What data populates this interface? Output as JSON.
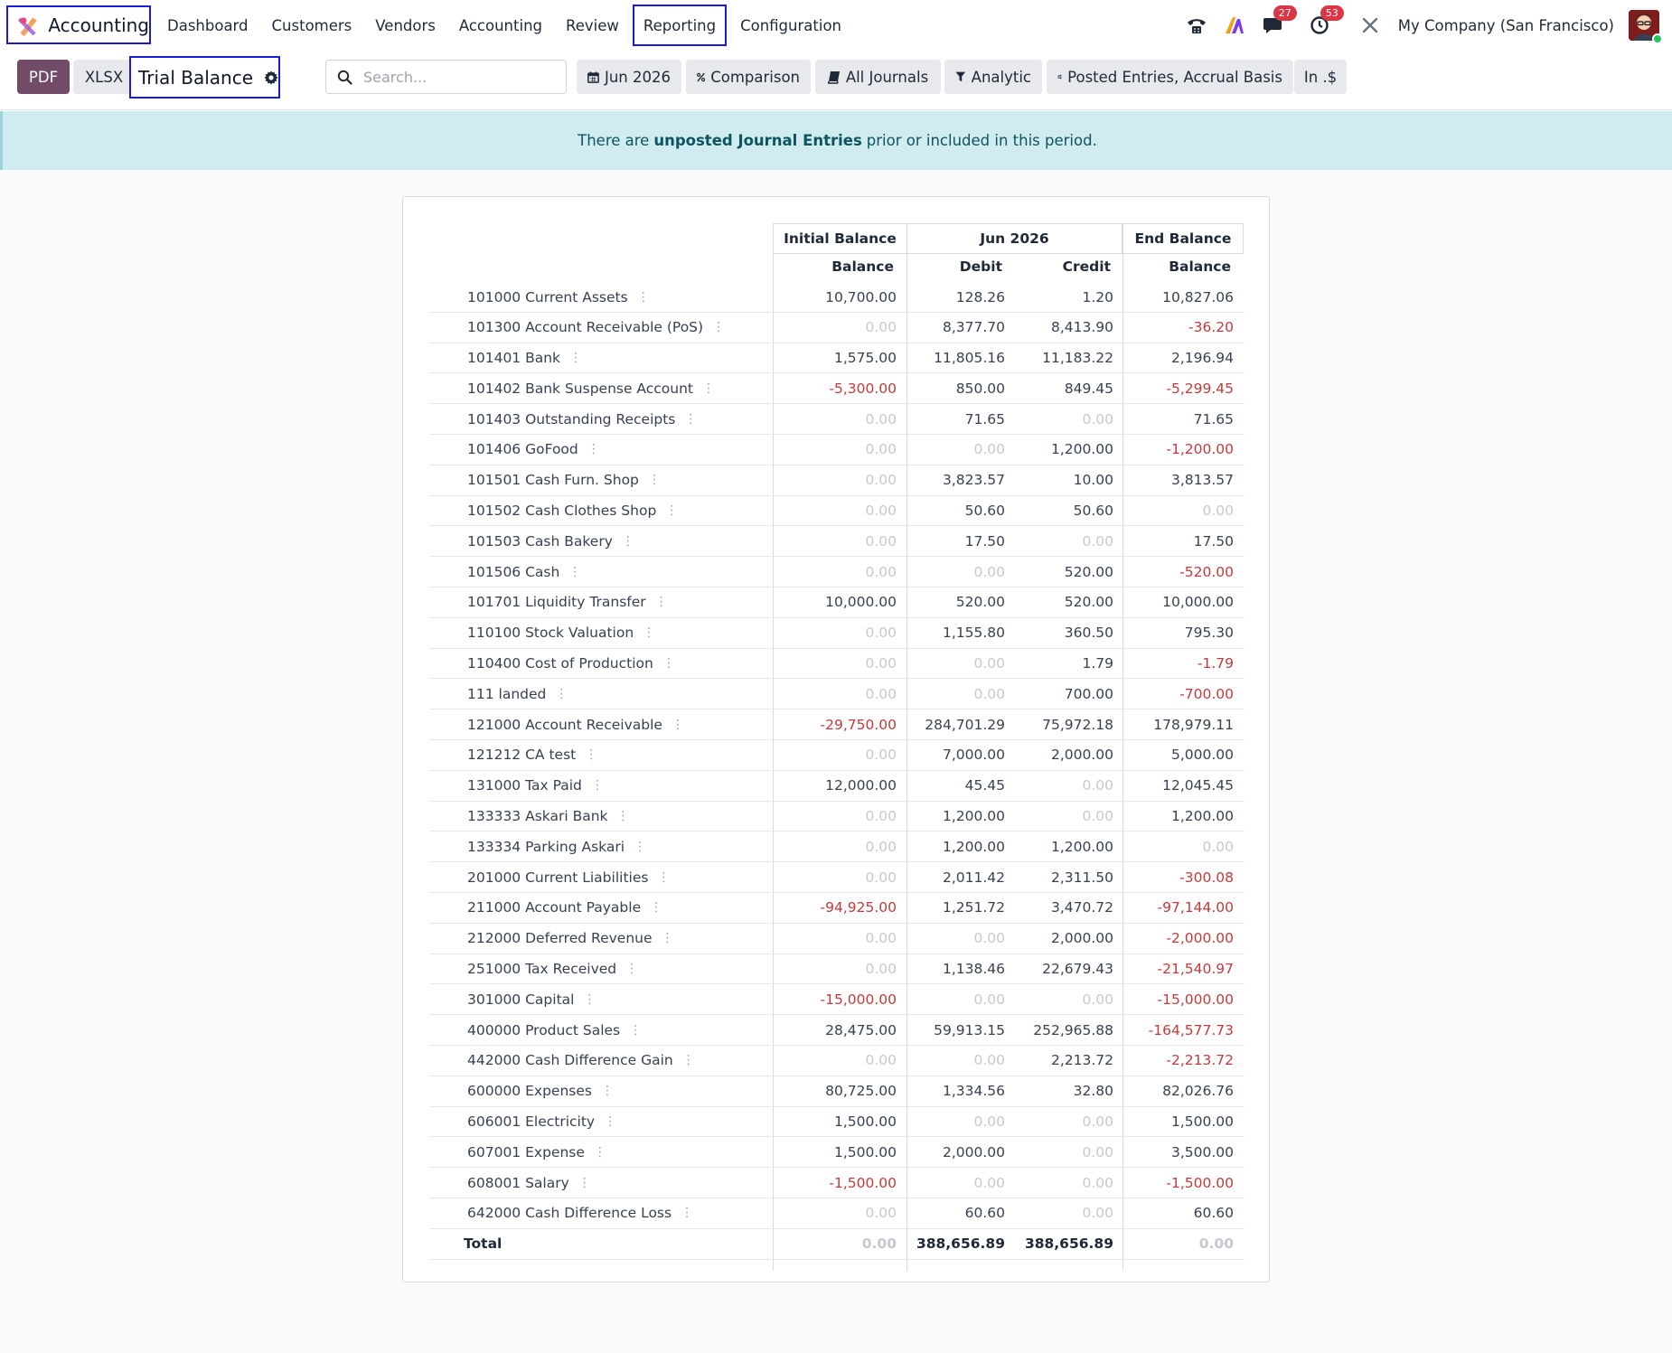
{
  "nav": {
    "app_name": "Accounting",
    "menu": [
      "Dashboard",
      "Customers",
      "Vendors",
      "Accounting",
      "Review",
      "Reporting",
      "Configuration"
    ],
    "messages_badge": "27",
    "activities_badge": "53",
    "company": "My Company (San Francisco)"
  },
  "controls": {
    "pdf_label": "PDF",
    "xlsx_label": "XLSX",
    "report_title": "Trial Balance",
    "search_placeholder": "Search...",
    "filters": [
      "Jun 2026",
      "Comparison",
      "All Journals",
      "Analytic",
      "Posted Entries, Accrual Basis",
      "In .$"
    ]
  },
  "alert": {
    "prefix": "There are",
    "link": "unposted Journal Entries",
    "suffix": "prior or included in this period."
  },
  "report": {
    "group_headers": [
      "Initial Balance",
      "Jun 2026",
      "End Balance"
    ],
    "sub_headers": [
      "Balance",
      "Debit",
      "Credit",
      "Balance"
    ],
    "rows": [
      [
        "101000 Current Assets",
        "10,700.00",
        "128.26",
        "1.20",
        "10,827.06"
      ],
      [
        "101300 Account Receivable (PoS)",
        "0.00",
        "8,377.70",
        "8,413.90",
        "-36.20"
      ],
      [
        "101401 Bank",
        "1,575.00",
        "11,805.16",
        "11,183.22",
        "2,196.94"
      ],
      [
        "101402 Bank Suspense Account",
        "-5,300.00",
        "850.00",
        "849.45",
        "-5,299.45"
      ],
      [
        "101403 Outstanding Receipts",
        "0.00",
        "71.65",
        "0.00",
        "71.65"
      ],
      [
        "101406 GoFood",
        "0.00",
        "0.00",
        "1,200.00",
        "-1,200.00"
      ],
      [
        "101501 Cash Furn. Shop",
        "0.00",
        "3,823.57",
        "10.00",
        "3,813.57"
      ],
      [
        "101502 Cash Clothes Shop",
        "0.00",
        "50.60",
        "50.60",
        "0.00"
      ],
      [
        "101503 Cash Bakery",
        "0.00",
        "17.50",
        "0.00",
        "17.50"
      ],
      [
        "101506 Cash",
        "0.00",
        "0.00",
        "520.00",
        "-520.00"
      ],
      [
        "101701 Liquidity Transfer",
        "10,000.00",
        "520.00",
        "520.00",
        "10,000.00"
      ],
      [
        "110100 Stock Valuation",
        "0.00",
        "1,155.80",
        "360.50",
        "795.30"
      ],
      [
        "110400 Cost of Production",
        "0.00",
        "0.00",
        "1.79",
        "-1.79"
      ],
      [
        "111 landed",
        "0.00",
        "0.00",
        "700.00",
        "-700.00"
      ],
      [
        "121000 Account Receivable",
        "-29,750.00",
        "284,701.29",
        "75,972.18",
        "178,979.11"
      ],
      [
        "121212 CA test",
        "0.00",
        "7,000.00",
        "2,000.00",
        "5,000.00"
      ],
      [
        "131000 Tax Paid",
        "12,000.00",
        "45.45",
        "0.00",
        "12,045.45"
      ],
      [
        "133333 Askari Bank",
        "0.00",
        "1,200.00",
        "0.00",
        "1,200.00"
      ],
      [
        "133334 Parking Askari",
        "0.00",
        "1,200.00",
        "1,200.00",
        "0.00"
      ],
      [
        "201000 Current Liabilities",
        "0.00",
        "2,011.42",
        "2,311.50",
        "-300.08"
      ],
      [
        "211000 Account Payable",
        "-94,925.00",
        "1,251.72",
        "3,470.72",
        "-97,144.00"
      ],
      [
        "212000 Deferred Revenue",
        "0.00",
        "0.00",
        "2,000.00",
        "-2,000.00"
      ],
      [
        "251000 Tax Received",
        "0.00",
        "1,138.46",
        "22,679.43",
        "-21,540.97"
      ],
      [
        "301000 Capital",
        "-15,000.00",
        "0.00",
        "0.00",
        "-15,000.00"
      ],
      [
        "400000 Product Sales",
        "28,475.00",
        "59,913.15",
        "252,965.88",
        "-164,577.73"
      ],
      [
        "442000 Cash Difference Gain",
        "0.00",
        "0.00",
        "2,213.72",
        "-2,213.72"
      ],
      [
        "600000 Expenses",
        "80,725.00",
        "1,334.56",
        "32.80",
        "82,026.76"
      ],
      [
        "606001 Electricity",
        "1,500.00",
        "0.00",
        "0.00",
        "1,500.00"
      ],
      [
        "607001 Expense",
        "1,500.00",
        "2,000.00",
        "0.00",
        "3,500.00"
      ],
      [
        "608001 Salary",
        "-1,500.00",
        "0.00",
        "0.00",
        "-1,500.00"
      ],
      [
        "642000 Cash Difference Loss",
        "0.00",
        "60.60",
        "0.00",
        "60.60"
      ]
    ],
    "total": [
      "Total",
      "0.00",
      "388,656.89",
      "388,656.89",
      "0.00"
    ]
  },
  "colors": {
    "primary": "#714b67",
    "negative": "#c23b3b",
    "zero": "#c5c9cf",
    "alert_bg": "#d1ecf1",
    "highlight_box": "#1a1adb"
  }
}
